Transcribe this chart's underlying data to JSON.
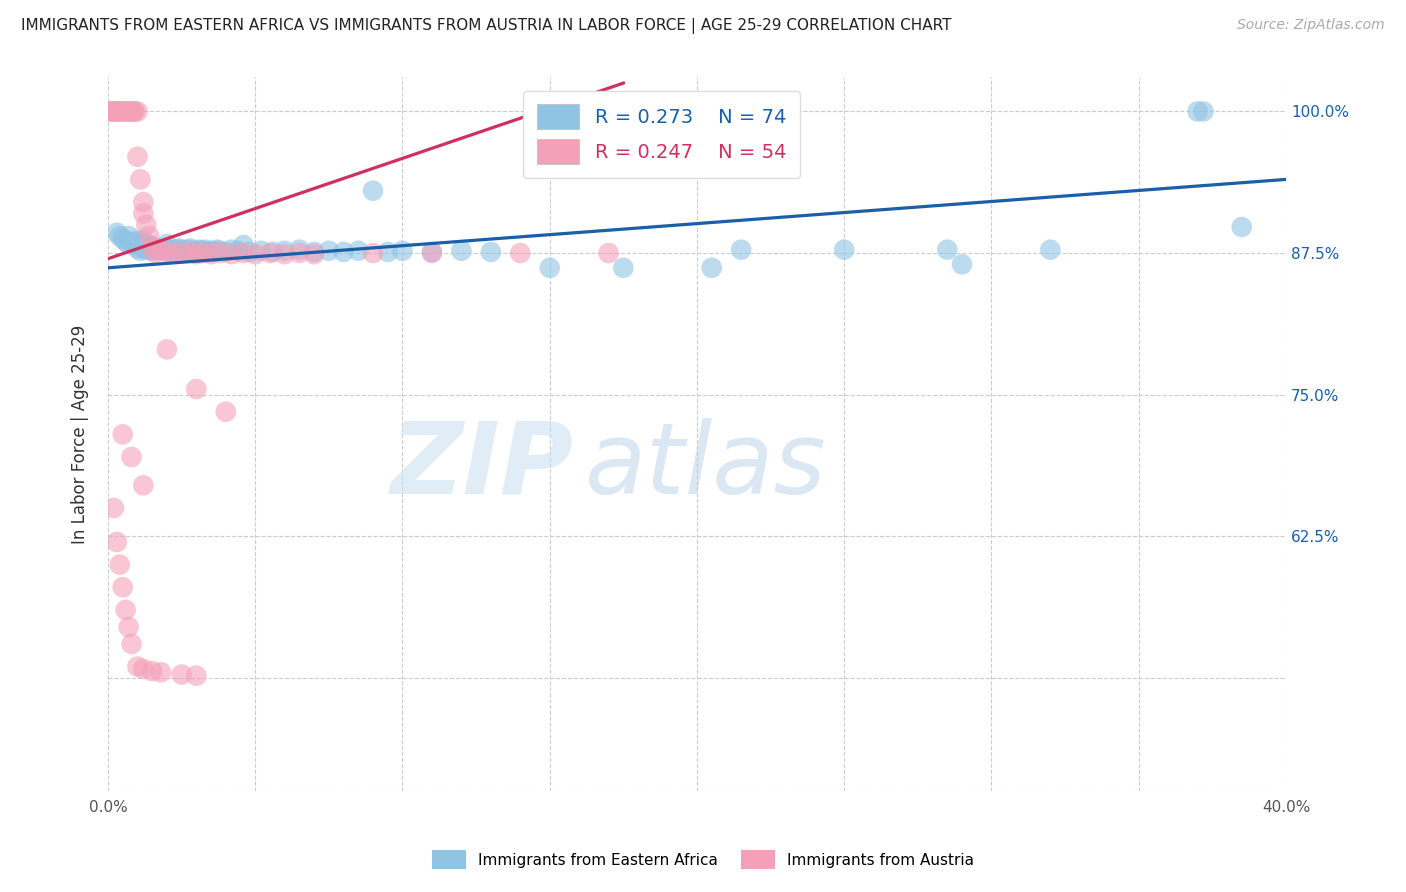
{
  "title": "IMMIGRANTS FROM EASTERN AFRICA VS IMMIGRANTS FROM AUSTRIA IN LABOR FORCE | AGE 25-29 CORRELATION CHART",
  "source": "Source: ZipAtlas.com",
  "ylabel": "In Labor Force | Age 25-29",
  "xlim": [
    0.0,
    0.4
  ],
  "ylim": [
    0.4,
    1.03
  ],
  "xticks": [
    0.0,
    0.05,
    0.1,
    0.15,
    0.2,
    0.25,
    0.3,
    0.35,
    0.4
  ],
  "xticklabels": [
    "0.0%",
    "",
    "",
    "",
    "",
    "",
    "",
    "",
    "40.0%"
  ],
  "yticks": [
    0.4,
    0.5,
    0.625,
    0.75,
    0.875,
    1.0
  ],
  "yticklabels_right": [
    "",
    "",
    "62.5%",
    "75.0%",
    "87.5%",
    "100.0%"
  ],
  "legend_r1": "R = 0.273",
  "legend_n1": "N = 74",
  "legend_r2": "R = 0.247",
  "legend_n2": "N = 54",
  "color_blue": "#90c4e4",
  "color_pink": "#f4a0b8",
  "color_blue_line": "#1a5fa8",
  "color_pink_line": "#d03060",
  "color_blue_text": "#1a5fa8",
  "color_pink_text": "#d03060",
  "watermark_zip": "ZIP",
  "watermark_atlas": "atlas",
  "blue_scatter_x": [
    0.003,
    0.004,
    0.005,
    0.006,
    0.007,
    0.007,
    0.008,
    0.009,
    0.01,
    0.01,
    0.011,
    0.011,
    0.012,
    0.012,
    0.013,
    0.013,
    0.014,
    0.014,
    0.015,
    0.015,
    0.016,
    0.017,
    0.018,
    0.019,
    0.02,
    0.02,
    0.021,
    0.022,
    0.023,
    0.024,
    0.025,
    0.026,
    0.027,
    0.028,
    0.029,
    0.03,
    0.031,
    0.032,
    0.033,
    0.034,
    0.035,
    0.036,
    0.037,
    0.038,
    0.04,
    0.042,
    0.044,
    0.046,
    0.048,
    0.052,
    0.056,
    0.06,
    0.065,
    0.07,
    0.075,
    0.08,
    0.085,
    0.09,
    0.095,
    0.1,
    0.11,
    0.12,
    0.13,
    0.15,
    0.175,
    0.205,
    0.215,
    0.25,
    0.285,
    0.32,
    0.37,
    0.372,
    0.385,
    0.29
  ],
  "blue_scatter_y": [
    0.893,
    0.89,
    0.888,
    0.885,
    0.883,
    0.89,
    0.885,
    0.882,
    0.879,
    0.886,
    0.877,
    0.884,
    0.879,
    0.886,
    0.878,
    0.882,
    0.878,
    0.882,
    0.877,
    0.881,
    0.878,
    0.879,
    0.878,
    0.877,
    0.879,
    0.883,
    0.878,
    0.877,
    0.878,
    0.879,
    0.878,
    0.877,
    0.878,
    0.879,
    0.877,
    0.876,
    0.878,
    0.877,
    0.878,
    0.876,
    0.877,
    0.876,
    0.878,
    0.877,
    0.876,
    0.878,
    0.877,
    0.882,
    0.876,
    0.877,
    0.876,
    0.877,
    0.878,
    0.876,
    0.877,
    0.876,
    0.877,
    0.93,
    0.876,
    0.877,
    0.876,
    0.877,
    0.876,
    0.862,
    0.862,
    0.862,
    0.878,
    0.878,
    0.878,
    0.878,
    1.0,
    1.0,
    0.898,
    0.865
  ],
  "pink_scatter_x": [
    0.001,
    0.001,
    0.002,
    0.002,
    0.003,
    0.003,
    0.003,
    0.004,
    0.004,
    0.005,
    0.005,
    0.006,
    0.006,
    0.007,
    0.007,
    0.008,
    0.008,
    0.009,
    0.009,
    0.01,
    0.01,
    0.011,
    0.012,
    0.012,
    0.013,
    0.014,
    0.015,
    0.016,
    0.018,
    0.02,
    0.022,
    0.025,
    0.028,
    0.03,
    0.032,
    0.035,
    0.038,
    0.042,
    0.046,
    0.05,
    0.055,
    0.06,
    0.065,
    0.07,
    0.09,
    0.11,
    0.14,
    0.17,
    0.02,
    0.03,
    0.04,
    0.005,
    0.008,
    0.012
  ],
  "pink_scatter_y": [
    1.0,
    1.0,
    1.0,
    1.0,
    1.0,
    1.0,
    1.0,
    1.0,
    1.0,
    1.0,
    1.0,
    1.0,
    1.0,
    1.0,
    1.0,
    1.0,
    1.0,
    1.0,
    1.0,
    1.0,
    0.96,
    0.94,
    0.92,
    0.91,
    0.9,
    0.89,
    0.88,
    0.875,
    0.877,
    0.876,
    0.875,
    0.875,
    0.876,
    0.874,
    0.875,
    0.874,
    0.875,
    0.874,
    0.875,
    0.874,
    0.875,
    0.874,
    0.875,
    0.874,
    0.875,
    0.875,
    0.875,
    0.875,
    0.79,
    0.755,
    0.735,
    0.715,
    0.695,
    0.67
  ],
  "pink_scatter_x2": [
    0.002,
    0.003,
    0.004,
    0.005,
    0.006,
    0.007,
    0.008,
    0.01,
    0.012,
    0.015,
    0.018,
    0.025,
    0.03
  ],
  "pink_scatter_y2": [
    0.65,
    0.62,
    0.6,
    0.58,
    0.56,
    0.545,
    0.53,
    0.51,
    0.508,
    0.506,
    0.505,
    0.503,
    0.502
  ],
  "blue_line_x": [
    0.0,
    0.4
  ],
  "blue_line_y": [
    0.862,
    0.94
  ],
  "pink_line_x": [
    0.0,
    0.175
  ],
  "pink_line_y": [
    0.87,
    1.025
  ],
  "grid_color": "#cccccc",
  "grid_style": "--",
  "grid_linewidth": 0.8
}
